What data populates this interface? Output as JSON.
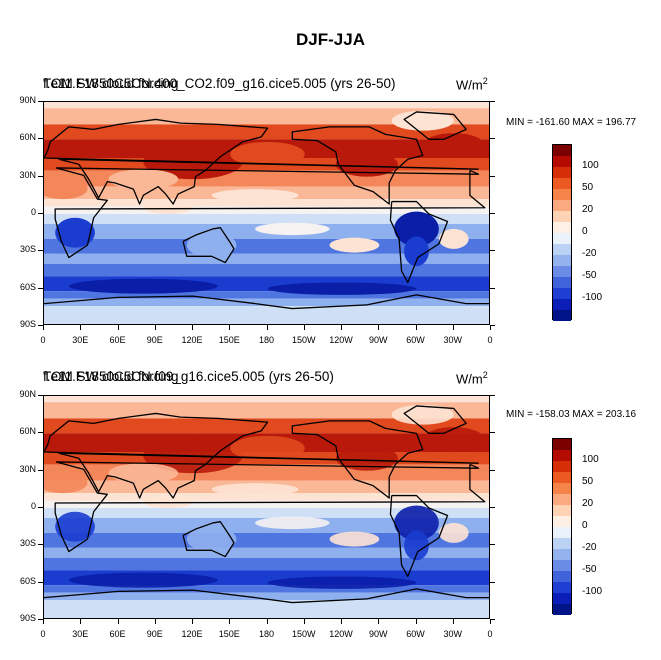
{
  "main_title": "DJF-JJA",
  "panels": [
    {
      "title_a": "TOM SW cloud forcing",
      "title_b": "f.e11.F1850C5CN.400_CO2.f09_g16.cice5.005 (yrs 26-50)",
      "units": "W/m",
      "units_sup": "2",
      "minmax": "MIN = -161.60 MAX = 196.77"
    },
    {
      "title_a": "TOM SW cloud forcing",
      "title_b": "f.e11.F1850C5CN.f09_g16.cice5.005 (yrs 26-50)",
      "units": "W/m",
      "units_sup": "2",
      "minmax": "MIN = -158.03 MAX = 203.16"
    }
  ],
  "lat_labels": [
    "90N",
    "60N",
    "30N",
    "0",
    "30S",
    "60S",
    "90S"
  ],
  "lon_labels": [
    "0",
    "30E",
    "60E",
    "90E",
    "120E",
    "150E",
    "180",
    "150W",
    "120W",
    "90W",
    "60W",
    "30W",
    "0"
  ],
  "colorbar": {
    "labels": [
      "100",
      "50",
      "20",
      "0",
      "-20",
      "-50",
      "-100"
    ],
    "colors": [
      "#7a0000",
      "#b30b00",
      "#d62f08",
      "#ec5a21",
      "#f6834a",
      "#fbaa80",
      "#fdd2b5",
      "#fff0e6",
      "#e9f1fb",
      "#bcd2f4",
      "#93b2ee",
      "#6a8ce6",
      "#4063dc",
      "#1f3fd3",
      "#0b1fb8",
      "#001488"
    ]
  },
  "map_colors": {
    "deep_red": "#b8190a",
    "red": "#e04a1e",
    "orange": "#f4875a",
    "salmon": "#fbb897",
    "cream": "#fde3d3",
    "pale": "#f6f2f2",
    "light_blue": "#cfe0f6",
    "mid_blue": "#8fb0ee",
    "blue": "#4f75e0",
    "dark_blue": "#1a3dd0",
    "navy": "#0a1ea8"
  }
}
